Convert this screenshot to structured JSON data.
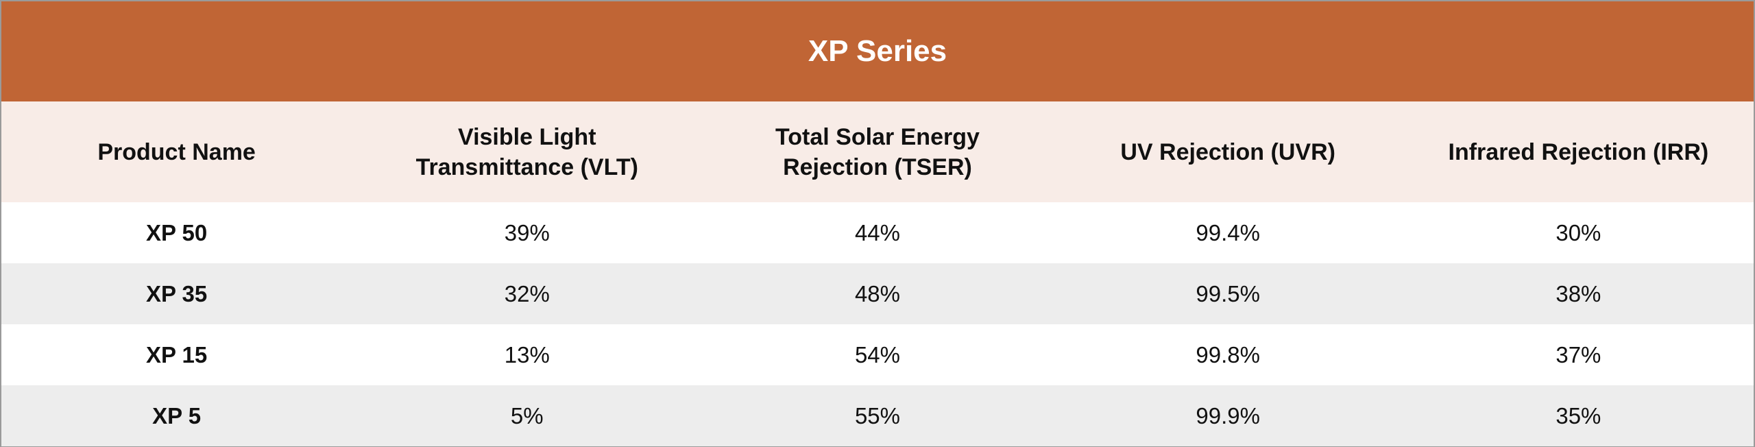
{
  "title": "XP Series",
  "columns": [
    [
      "Product Name"
    ],
    [
      "Visible Light",
      "Transmittance (VLT)"
    ],
    [
      "Total Solar Energy",
      "Rejection (TSER)"
    ],
    [
      "UV Rejection (UVR)"
    ],
    [
      "Infrared Rejection (IRR)"
    ]
  ],
  "rows": [
    [
      "XP 50",
      "39%",
      "44%",
      "99.4%",
      "30%"
    ],
    [
      "XP 35",
      "32%",
      "48%",
      "99.5%",
      "38%"
    ],
    [
      "XP 15",
      "13%",
      "54%",
      "99.8%",
      "37%"
    ],
    [
      "XP 5",
      "5%",
      "55%",
      "99.9%",
      "35%"
    ]
  ],
  "colors": {
    "title_bg": "#c06535",
    "header_bg": "#f8ece7",
    "stripe": "#ededed"
  }
}
